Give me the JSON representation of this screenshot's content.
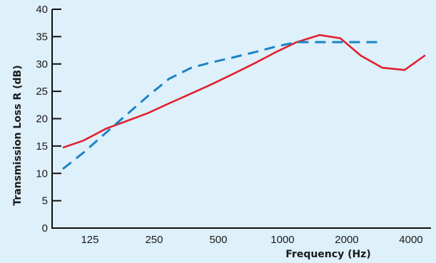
{
  "chart_data": {
    "type": "line",
    "xlabel": "Frequency (Hz)",
    "ylabel": "Transmission Loss R (dB)",
    "x_scale": "log2",
    "x_range": [
      100,
      5000
    ],
    "x_tick_values": [
      125,
      250,
      500,
      1000,
      2000,
      4000
    ],
    "x_tick_labels": [
      "125",
      "250",
      "500",
      "1000",
      "2000",
      "4000"
    ],
    "ylim": [
      0,
      40
    ],
    "y_ticks": [
      0,
      5,
      10,
      15,
      20,
      25,
      30,
      35,
      40
    ],
    "grid": false,
    "series": [
      {
        "style": "solid",
        "color": "#e0202e",
        "points": [
          [
            100,
            14.7
          ],
          [
            125,
            16
          ],
          [
            160,
            18.2
          ],
          [
            200,
            19.6
          ],
          [
            250,
            21
          ],
          [
            315,
            22.8
          ],
          [
            400,
            24.6
          ],
          [
            500,
            26.3
          ],
          [
            630,
            28.2
          ],
          [
            800,
            30.2
          ],
          [
            1000,
            32.2
          ],
          [
            1250,
            34
          ],
          [
            1600,
            35.3
          ],
          [
            2000,
            34.7
          ],
          [
            2500,
            31.5
          ],
          [
            3150,
            29.3
          ],
          [
            4000,
            28.9
          ],
          [
            5000,
            31.6
          ]
        ]
      },
      {
        "style": "dashed",
        "color": "#1b84c4",
        "points": [
          [
            100,
            10.8
          ],
          [
            125,
            13.8
          ],
          [
            160,
            17.5
          ],
          [
            200,
            20.8
          ],
          [
            250,
            24.1
          ],
          [
            315,
            27.3
          ],
          [
            400,
            29.3
          ],
          [
            500,
            30.3
          ],
          [
            630,
            31.2
          ],
          [
            800,
            32.2
          ],
          [
            1000,
            33.2
          ],
          [
            1250,
            34
          ],
          [
            1600,
            34
          ],
          [
            2000,
            34
          ],
          [
            2500,
            34
          ],
          [
            3150,
            34
          ]
        ]
      }
    ]
  }
}
